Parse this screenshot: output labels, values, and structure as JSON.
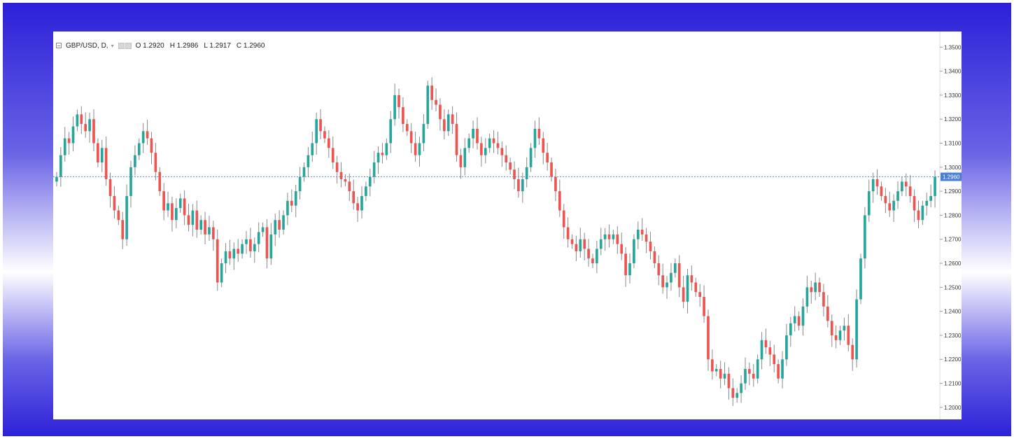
{
  "legend": {
    "symbol": "GBP/USD, D,",
    "open": "O 1.2920",
    "high": "H 1.2986",
    "low": "L 1.2917",
    "close": "C 1.2960"
  },
  "colors": {
    "up": "#26a69a",
    "down": "#ef5350",
    "wick": "#888888",
    "price_line": "#5b8fd6",
    "last_label_bg": "#4a7fd0",
    "border_gradient_dark": "#2a1fd8"
  },
  "chart_data": {
    "type": "candlestick",
    "title": "GBP/USD, D,",
    "ylim": [
      1.195,
      1.3565
    ],
    "yticks": [
      "1.3500",
      "1.3400",
      "1.3300",
      "1.3200",
      "1.3100",
      "1.3000",
      "1.2900",
      "1.2800",
      "1.2700",
      "1.2600",
      "1.2500",
      "1.2400",
      "1.2300",
      "1.2200",
      "1.2100",
      "1.2000"
    ],
    "last_price": "1.2960",
    "last_ohlc": {
      "open": 1.292,
      "high": 1.2986,
      "low": 1.2917,
      "close": 1.296
    },
    "series": [
      {
        "name": "close",
        "values": [
          1.296,
          1.305,
          1.312,
          1.31,
          1.317,
          1.322,
          1.318,
          1.315,
          1.32,
          1.31,
          1.302,
          1.308,
          1.295,
          1.288,
          1.282,
          1.278,
          1.27,
          1.288,
          1.3,
          1.305,
          1.31,
          1.315,
          1.312,
          1.306,
          1.298,
          1.29,
          1.282,
          1.285,
          1.278,
          1.283,
          1.287,
          1.28,
          1.276,
          1.282,
          1.274,
          1.278,
          1.272,
          1.275,
          1.27,
          1.252,
          1.26,
          1.265,
          1.262,
          1.266,
          1.264,
          1.268,
          1.27,
          1.265,
          1.268,
          1.273,
          1.275,
          1.262,
          1.272,
          1.278,
          1.274,
          1.28,
          1.286,
          1.284,
          1.29,
          1.296,
          1.3,
          1.305,
          1.31,
          1.32,
          1.315,
          1.312,
          1.308,
          1.302,
          1.298,
          1.295,
          1.294,
          1.29,
          1.285,
          1.282,
          1.288,
          1.292,
          1.296,
          1.302,
          1.306,
          1.305,
          1.31,
          1.32,
          1.33,
          1.325,
          1.318,
          1.315,
          1.31,
          1.305,
          1.31,
          1.318,
          1.334,
          1.328,
          1.326,
          1.32,
          1.315,
          1.322,
          1.318,
          1.305,
          1.3,
          1.308,
          1.312,
          1.316,
          1.31,
          1.305,
          1.308,
          1.312,
          1.31,
          1.308,
          1.305,
          1.302,
          1.299,
          1.295,
          1.29,
          1.295,
          1.3,
          1.308,
          1.316,
          1.312,
          1.306,
          1.302,
          1.296,
          1.29,
          1.282,
          1.275,
          1.27,
          1.268,
          1.265,
          1.27,
          1.266,
          1.262,
          1.26,
          1.266,
          1.27,
          1.272,
          1.27,
          1.272,
          1.268,
          1.264,
          1.255,
          1.26,
          1.27,
          1.274,
          1.272,
          1.269,
          1.265,
          1.26,
          1.255,
          1.25,
          1.252,
          1.256,
          1.26,
          1.25,
          1.244,
          1.255,
          1.252,
          1.248,
          1.246,
          1.238,
          1.22,
          1.215,
          1.216,
          1.212,
          1.214,
          1.208,
          1.204,
          1.206,
          1.21,
          1.216,
          1.214,
          1.212,
          1.22,
          1.228,
          1.225,
          1.222,
          1.218,
          1.212,
          1.22,
          1.23,
          1.235,
          1.238,
          1.234,
          1.242,
          1.25,
          1.248,
          1.252,
          1.248,
          1.242,
          1.236,
          1.23,
          1.228,
          1.232,
          1.234,
          1.226,
          1.22,
          1.245,
          1.262,
          1.28,
          1.29,
          1.295,
          1.292,
          1.288,
          1.285,
          1.282,
          1.286,
          1.29,
          1.294,
          1.292,
          1.288,
          1.282,
          1.278,
          1.284,
          1.286,
          1.288,
          1.296
        ]
      }
    ]
  }
}
